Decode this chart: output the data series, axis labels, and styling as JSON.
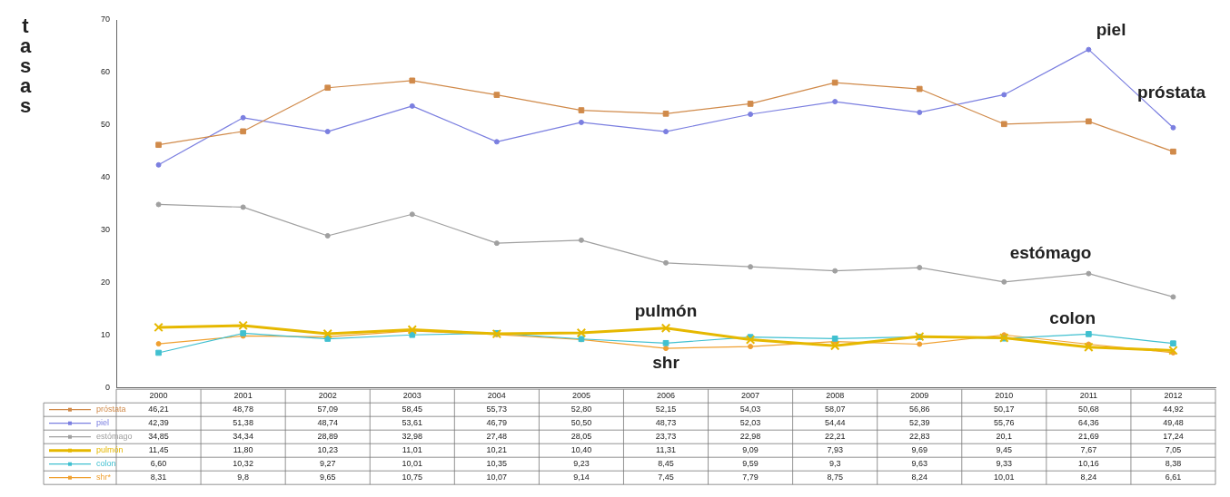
{
  "chart_data": {
    "type": "line",
    "ylabel": "tasas",
    "categories": [
      "2000",
      "2001",
      "2002",
      "2003",
      "2004",
      "2005",
      "2006",
      "2007",
      "2008",
      "2009",
      "2010",
      "2011",
      "2012"
    ],
    "ylim": [
      0,
      70
    ],
    "yticks": [
      0,
      10,
      20,
      30,
      40,
      50,
      60,
      70
    ],
    "grid": false,
    "legend": "bottom",
    "line_style": "solid",
    "series": [
      {
        "name": "próstata",
        "color": "#d08a4a",
        "marker": "square",
        "values": [
          46.21,
          48.78,
          57.09,
          58.45,
          55.73,
          52.8,
          52.15,
          54.03,
          58.07,
          56.86,
          50.17,
          50.68,
          44.92
        ],
        "value_labels": [
          "46,21",
          "48,78",
          "57,09",
          "58,45",
          "55,73",
          "52,80",
          "52,15",
          "54,03",
          "58,07",
          "56,86",
          "50,17",
          "50,68",
          "44,92"
        ]
      },
      {
        "name": "piel",
        "color": "#7b7fe0",
        "marker": "circle",
        "values": [
          42.39,
          51.38,
          48.74,
          53.61,
          46.79,
          50.5,
          48.73,
          52.03,
          54.44,
          52.39,
          55.76,
          64.36,
          49.48
        ],
        "value_labels": [
          "42,39",
          "51,38",
          "48,74",
          "53,61",
          "46,79",
          "50,50",
          "48,73",
          "52,03",
          "54,44",
          "52,39",
          "55,76",
          "64,36",
          "49,48"
        ]
      },
      {
        "name": "estómago",
        "color": "#a0a0a0",
        "marker": "circle",
        "values": [
          34.85,
          34.34,
          28.89,
          32.98,
          27.48,
          28.05,
          23.73,
          22.98,
          22.21,
          22.83,
          20.1,
          21.69,
          17.24
        ],
        "value_labels": [
          "34,85",
          "34,34",
          "28,89",
          "32,98",
          "27,48",
          "28,05",
          "23,73",
          "22,98",
          "22,21",
          "22,83",
          "20,1",
          "21,69",
          "17,24"
        ]
      },
      {
        "name": "pulmón",
        "color": "#e6b800",
        "marker": "cross",
        "values": [
          11.45,
          11.8,
          10.23,
          11.01,
          10.21,
          10.4,
          11.31,
          9.09,
          7.93,
          9.69,
          9.45,
          7.67,
          7.05
        ],
        "value_labels": [
          "11,45",
          "11,80",
          "10,23",
          "11,01",
          "10,21",
          "10,40",
          "11,31",
          "9,09",
          "7,93",
          "9,69",
          "9,45",
          "7,67",
          "7,05"
        ]
      },
      {
        "name": "colon",
        "color": "#40c0d0",
        "marker": "square",
        "values": [
          6.6,
          10.32,
          9.27,
          10.01,
          10.35,
          9.23,
          8.45,
          9.59,
          9.3,
          9.63,
          9.33,
          10.16,
          8.38
        ],
        "value_labels": [
          "6,60",
          "10,32",
          "9,27",
          "10,01",
          "10,35",
          "9,23",
          "8,45",
          "9,59",
          "9,3",
          "9,63",
          "9,33",
          "10,16",
          "8,38"
        ]
      },
      {
        "name": "shr*",
        "color": "#f0a030",
        "marker": "circle",
        "values": [
          8.31,
          9.8,
          9.65,
          10.75,
          10.07,
          9.14,
          7.45,
          7.79,
          8.75,
          8.24,
          10.01,
          8.24,
          6.61
        ],
        "value_labels": [
          "8,31",
          "9,8",
          "9,65",
          "10,75",
          "10,07",
          "9,14",
          "7,45",
          "7,79",
          "8,75",
          "8,24",
          "10,01",
          "8,24",
          "6,61"
        ]
      }
    ],
    "annotations": [
      "piel",
      "próstata",
      "estómago",
      "pulmón",
      "colon",
      "shr"
    ]
  }
}
